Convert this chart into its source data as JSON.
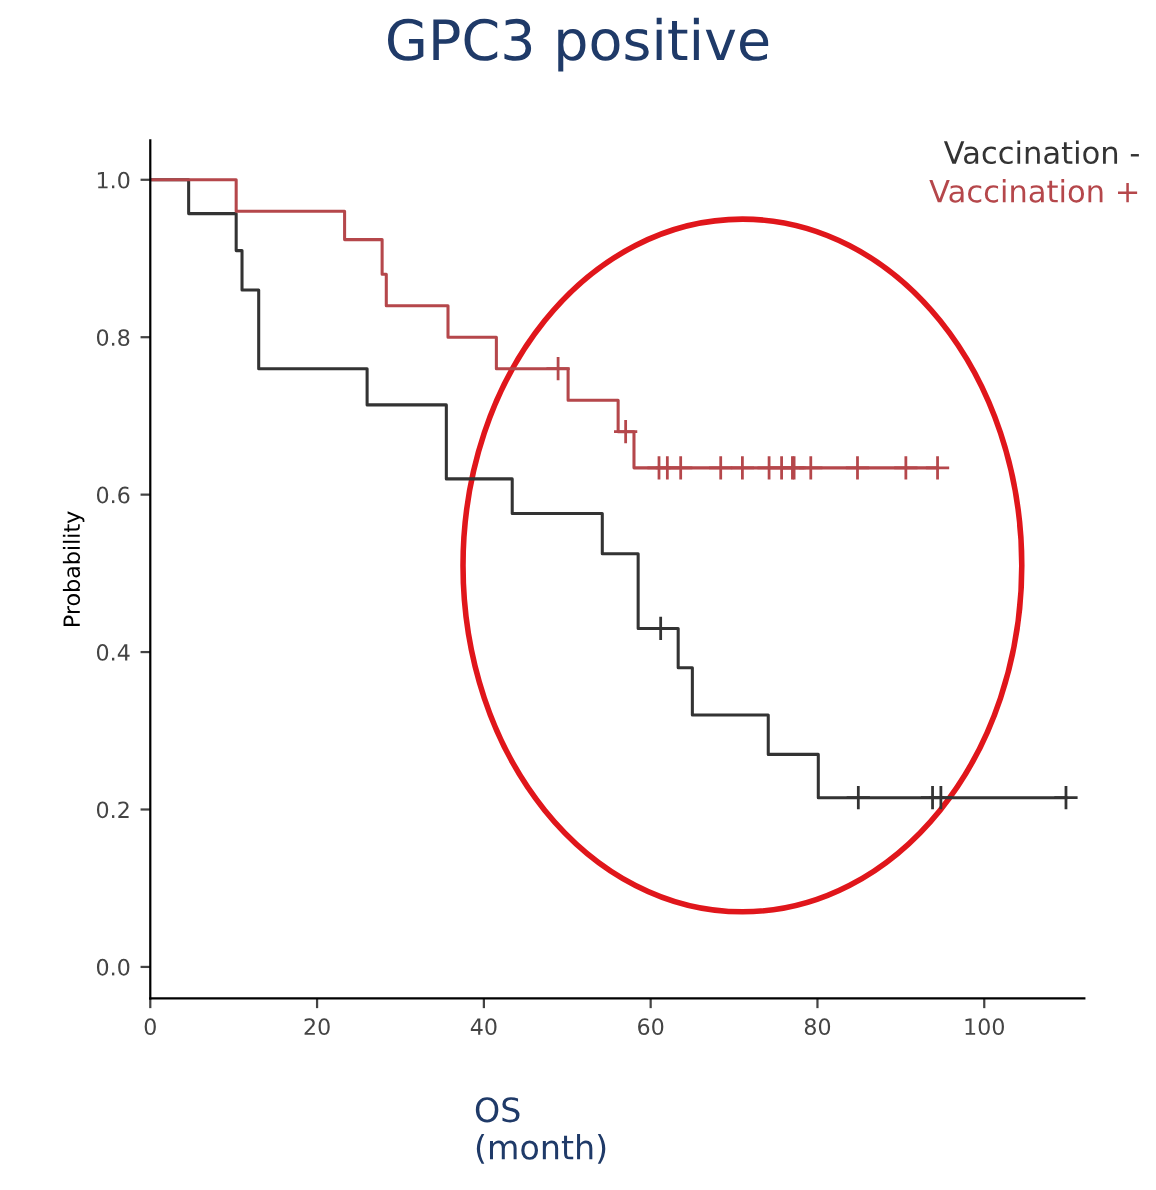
{
  "chart_data": {
    "type": "step",
    "title": "GPC3 positive",
    "xlabel": "OS\n(month)",
    "ylabel": "Probability",
    "xlim": [
      0,
      112
    ],
    "ylim": [
      -0.04,
      1.05
    ],
    "xticks": [
      0,
      20,
      40,
      60,
      80,
      100
    ],
    "yticks": [
      {
        "value": 0,
        "label": "0.0"
      },
      0.2,
      0.4,
      0.6,
      0.8,
      {
        "value": 1,
        "label": "1.0"
      }
    ],
    "grid": false,
    "legend": "top right",
    "line_style": "solid",
    "series": [
      {
        "name": "Vaccination -",
        "color": "#333333",
        "x": [
          0,
          4.6,
          10.3,
          11,
          13,
          26,
          35.5,
          43.4,
          54.2,
          58.5,
          63.3,
          65,
          74.1,
          80.1,
          109.8
        ],
        "values": [
          1,
          0.957,
          0.91,
          0.86,
          0.76,
          0.714,
          0.62,
          0.576,
          0.525,
          0.43,
          0.38,
          0.32,
          0.27,
          0.215,
          0.215
        ]
      },
      {
        "name": "Vaccination +",
        "color": "#b5474b",
        "x": [
          0,
          10.3,
          23.3,
          27.8,
          28.3,
          35.7,
          41.5,
          50.1,
          56.1,
          58,
          94.4
        ],
        "values": [
          1,
          0.96,
          0.924,
          0.88,
          0.84,
          0.8,
          0.76,
          0.72,
          0.68,
          0.634,
          0.634
        ]
      },
      {
        "type": "scatter",
        "marker": "cross",
        "color": "#333333",
        "x": [
          61.2,
          84.9,
          93.8,
          94.8,
          109.8
        ],
        "values": [
          0.43,
          0.215,
          0.215,
          0.215,
          0.215
        ]
      },
      {
        "type": "scatter",
        "marker": "cross",
        "color": "#b5474b",
        "x": [
          48.9,
          57,
          61,
          62,
          63.6,
          68.4,
          71,
          74.2,
          75.7,
          77,
          77.2,
          79.2,
          84.8,
          90.6,
          94.4
        ],
        "values": [
          0.76,
          0.68,
          0.634,
          0.634,
          0.634,
          0.634,
          0.634,
          0.634,
          0.634,
          0.634,
          0.634,
          0.634,
          0.634,
          0.634,
          0.634
        ]
      }
    ]
  }
}
